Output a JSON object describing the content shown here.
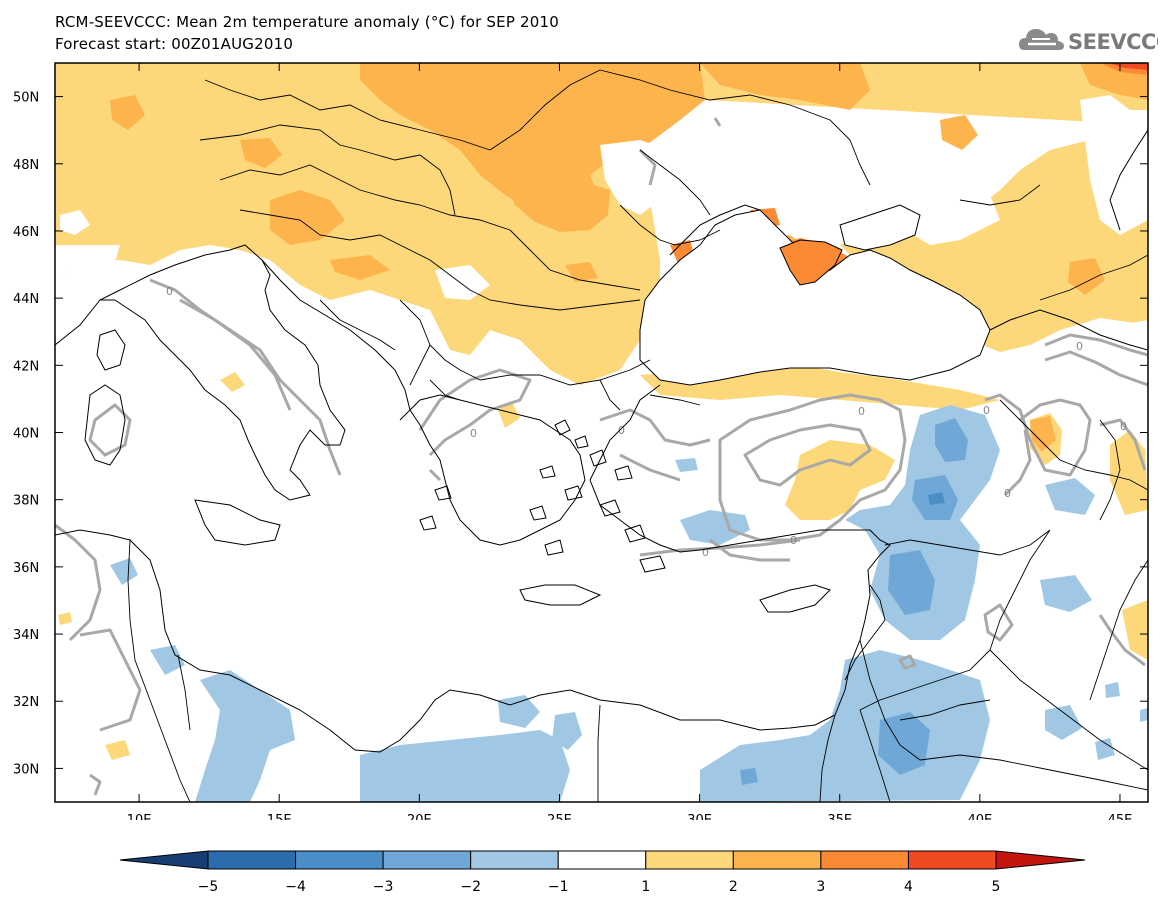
{
  "header": {
    "title_line1": "RCM-SEEVCCC: Mean 2m temperature anomaly (°C) for SEP 2010",
    "title_line2": "Forecast start: 00Z01AUG2010",
    "logo_text": "SEEVCCC"
  },
  "map": {
    "type": "contour-map",
    "variable": "Mean 2m temperature anomaly",
    "units": "°C",
    "lon_range": [
      7,
      46
    ],
    "lat_range": [
      29,
      51
    ],
    "lon_ticks": [
      "10E",
      "15E",
      "20E",
      "25E",
      "30E",
      "35E",
      "40E",
      "45E"
    ],
    "lon_tick_values": [
      10,
      15,
      20,
      25,
      30,
      35,
      40,
      45
    ],
    "lat_ticks": [
      "30N",
      "32N",
      "34N",
      "36N",
      "38N",
      "40N",
      "42N",
      "44N",
      "46N",
      "48N",
      "50N"
    ],
    "lat_tick_values": [
      30,
      32,
      34,
      36,
      38,
      40,
      42,
      44,
      46,
      48,
      50
    ],
    "contour_label": "0",
    "sea_color": "#ffffff",
    "land_border_color": "#000000"
  },
  "colorbar": {
    "ticks": [
      "−5",
      "−4",
      "−3",
      "−2",
      "−1",
      "1",
      "2",
      "3",
      "4",
      "5"
    ],
    "colors": [
      "#1a4f8a",
      "#2b6cad",
      "#4a8ec8",
      "#6fa8d6",
      "#a0c8e4",
      "#ffffff",
      "#fdd87a",
      "#fdb44d",
      "#fb8a35",
      "#f04a23",
      "#d21a13"
    ],
    "under_color": "#163e73",
    "over_color": "#c4150f"
  },
  "colors": {
    "warm1": "#fdd87a",
    "warm2": "#fdb44d",
    "warm3": "#fb8a35",
    "warm4": "#f04a23",
    "cool1": "#a0c8e4",
    "cool2": "#6fa8d6",
    "cool3": "#4a8ec8",
    "zero_contour": "#a8a8a8"
  }
}
